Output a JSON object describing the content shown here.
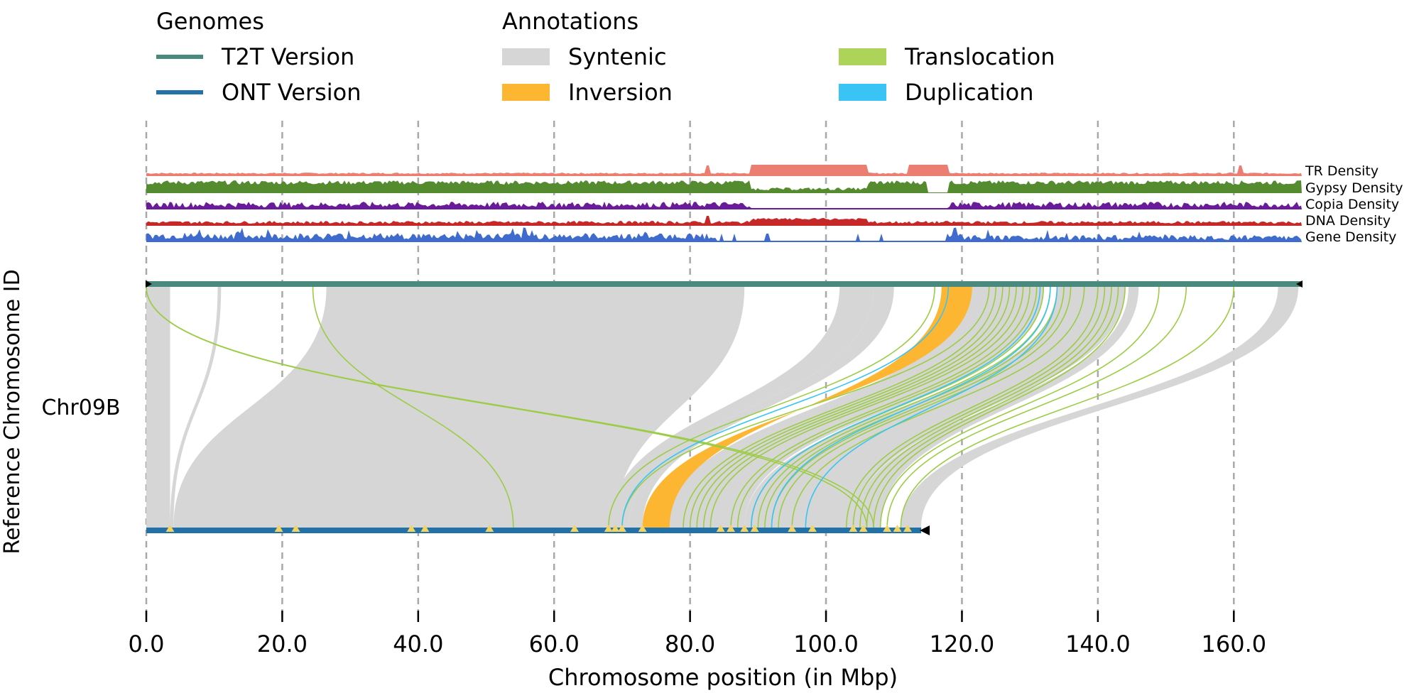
{
  "chart_data": {
    "type": "synteny",
    "xlabel": "Chromosome position (in Mbp)",
    "ylabel": "Reference Chromosome ID",
    "chromosome": "Chr09B",
    "xlim": [
      0,
      170
    ],
    "x_ticks": [
      0,
      20,
      40,
      60,
      80,
      100,
      120,
      140,
      160
    ],
    "x_tick_labels": [
      "0.0",
      "20.0",
      "40.0",
      "60.0",
      "80.0",
      "100.0",
      "120.0",
      "140.0",
      "160.0"
    ],
    "grid": "vertical-dashed",
    "genomes_legend": {
      "title": "Genomes",
      "items": [
        {
          "label": "T2T Version",
          "color": "#4a8a7e"
        },
        {
          "label": "ONT Version",
          "color": "#2271a8"
        }
      ]
    },
    "annotations_legend": {
      "title": "Annotations",
      "items": [
        {
          "label": "Syntenic",
          "color": "#d6d6d6"
        },
        {
          "label": "Inversion",
          "color": "#fdb632"
        },
        {
          "label": "Translocation",
          "color": "#add458"
        },
        {
          "label": "Duplication",
          "color": "#39c4f5"
        }
      ]
    },
    "genomes": [
      {
        "name": "T2T Version",
        "length": 170,
        "color": "#4a8a7e"
      },
      {
        "name": "ONT Version",
        "length": 114,
        "color": "#2271a8"
      }
    ],
    "density_tracks": [
      {
        "label": "TR Density",
        "color": "#ec7e71"
      },
      {
        "label": "Gypsy Density",
        "color": "#558b2f"
      },
      {
        "label": "Copia Density",
        "color": "#6a1b9a"
      },
      {
        "label": "DNA Density",
        "color": "#c62828"
      },
      {
        "label": "Gene Density",
        "color": "#3f6bce"
      }
    ],
    "syntenic_blocks": [
      {
        "t2t": [
          0,
          3.5
        ],
        "ont": [
          0,
          3.5
        ]
      },
      {
        "t2t": [
          10.5,
          11
        ],
        "ont": [
          3.5,
          4
        ]
      },
      {
        "t2t": [
          26.5,
          88
        ],
        "ont": [
          4,
          69
        ]
      },
      {
        "t2t": [
          102,
          107
        ],
        "ont": [
          68,
          71
        ]
      },
      {
        "t2t": [
          107,
          110
        ],
        "ont": [
          71,
          73
        ]
      },
      {
        "t2t": [
          120.5,
          132
        ],
        "ont": [
          76.5,
          88
        ]
      },
      {
        "t2t": [
          134,
          144
        ],
        "ont": [
          88,
          104
        ]
      },
      {
        "t2t": [
          144.5,
          146
        ],
        "ont": [
          104,
          108
        ]
      },
      {
        "t2t": [
          166.5,
          169.5
        ],
        "ont": [
          111,
          114
        ]
      }
    ],
    "inversions": [
      {
        "t2t": [
          117,
          121.5
        ],
        "ont": [
          73,
          77
        ]
      }
    ],
    "translocations": [
      {
        "t2t": 0,
        "ont": 107
      },
      {
        "t2t": 24.5,
        "ont": 54
      },
      {
        "t2t": 0,
        "ont": 106
      },
      {
        "t2t": 116,
        "ont": 68
      },
      {
        "t2t": 124,
        "ont": 70
      },
      {
        "t2t": 125,
        "ont": 79
      },
      {
        "t2t": 126,
        "ont": 80
      },
      {
        "t2t": 127,
        "ont": 81
      },
      {
        "t2t": 128,
        "ont": 82
      },
      {
        "t2t": 129,
        "ont": 83
      },
      {
        "t2t": 130,
        "ont": 86
      },
      {
        "t2t": 131,
        "ont": 87
      },
      {
        "t2t": 132,
        "ont": 89
      },
      {
        "t2t": 133,
        "ont": 90
      },
      {
        "t2t": 134,
        "ont": 91
      },
      {
        "t2t": 135,
        "ont": 92
      },
      {
        "t2t": 136,
        "ont": 93
      },
      {
        "t2t": 138,
        "ont": 95
      },
      {
        "t2t": 140,
        "ont": 103
      },
      {
        "t2t": 141,
        "ont": 104
      },
      {
        "t2t": 142,
        "ont": 105
      },
      {
        "t2t": 143,
        "ont": 106
      },
      {
        "t2t": 144,
        "ont": 107
      },
      {
        "t2t": 149,
        "ont": 108
      },
      {
        "t2t": 153,
        "ont": 109
      },
      {
        "t2t": 160,
        "ont": 111
      }
    ],
    "duplications": [
      {
        "t2t": 118,
        "ont": 70
      },
      {
        "t2t": 131.5,
        "ont": 89
      },
      {
        "t2t": 133,
        "ont": 92
      },
      {
        "t2t": 134,
        "ont": 97
      }
    ],
    "ont_markers": [
      3.5,
      19.5,
      22,
      39,
      41,
      50.5,
      63,
      68,
      69,
      70,
      73,
      84.5,
      86,
      88,
      89.5,
      95,
      98,
      104,
      105.5,
      109,
      110.5,
      112
    ]
  }
}
